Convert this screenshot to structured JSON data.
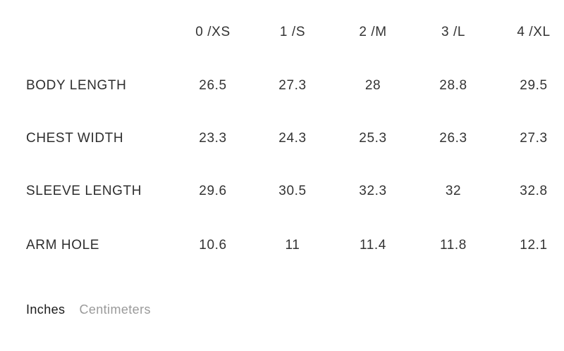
{
  "size_chart": {
    "columns": [
      "0 /XS",
      "1 /S",
      "2 /M",
      "3 /L",
      "4 /XL"
    ],
    "rows": [
      {
        "label": "BODY LENGTH",
        "values": [
          "26.5",
          "27.3",
          "28",
          "28.8",
          "29.5"
        ]
      },
      {
        "label": "CHEST WIDTH",
        "values": [
          "23.3",
          "24.3",
          "25.3",
          "26.3",
          "27.3"
        ]
      },
      {
        "label": "SLEEVE LENGTH",
        "values": [
          "29.6",
          "30.5",
          "32.3",
          "32",
          "32.8"
        ]
      },
      {
        "label": "ARM HOLE",
        "values": [
          "10.6",
          "11",
          "11.4",
          "11.8",
          "12.1"
        ]
      }
    ]
  },
  "units": {
    "selected": "Inches",
    "options": [
      "Inches",
      "Centimeters"
    ]
  },
  "colors": {
    "text": "#333333",
    "inactive_unit": "#9a9a9a",
    "background": "#ffffff"
  }
}
